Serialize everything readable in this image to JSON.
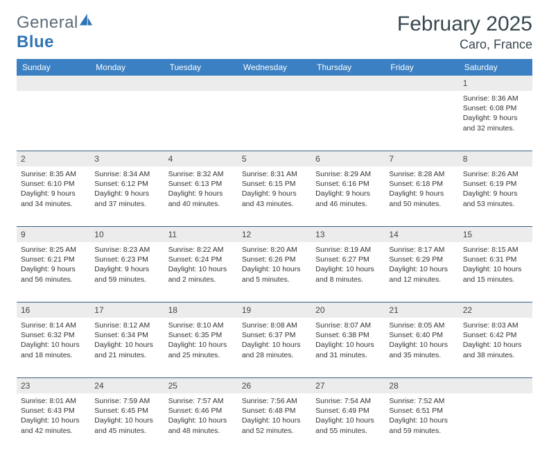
{
  "brand": {
    "name_a": "General",
    "name_b": "Blue"
  },
  "title": "February 2025",
  "location": "Caro, France",
  "colors": {
    "header_bg": "#3a80c3",
    "header_text": "#ffffff",
    "daynum_bg": "#ececec",
    "week_border": "#3a5e80",
    "text": "#333333",
    "title_color": "#37474f"
  },
  "day_names": [
    "Sunday",
    "Monday",
    "Tuesday",
    "Wednesday",
    "Thursday",
    "Friday",
    "Saturday"
  ],
  "weeks": [
    [
      {
        "n": "",
        "sr": "",
        "ss": "",
        "dl1": "",
        "dl2": ""
      },
      {
        "n": "",
        "sr": "",
        "ss": "",
        "dl1": "",
        "dl2": ""
      },
      {
        "n": "",
        "sr": "",
        "ss": "",
        "dl1": "",
        "dl2": ""
      },
      {
        "n": "",
        "sr": "",
        "ss": "",
        "dl1": "",
        "dl2": ""
      },
      {
        "n": "",
        "sr": "",
        "ss": "",
        "dl1": "",
        "dl2": ""
      },
      {
        "n": "",
        "sr": "",
        "ss": "",
        "dl1": "",
        "dl2": ""
      },
      {
        "n": "1",
        "sr": "Sunrise: 8:36 AM",
        "ss": "Sunset: 6:08 PM",
        "dl1": "Daylight: 9 hours",
        "dl2": "and 32 minutes."
      }
    ],
    [
      {
        "n": "2",
        "sr": "Sunrise: 8:35 AM",
        "ss": "Sunset: 6:10 PM",
        "dl1": "Daylight: 9 hours",
        "dl2": "and 34 minutes."
      },
      {
        "n": "3",
        "sr": "Sunrise: 8:34 AM",
        "ss": "Sunset: 6:12 PM",
        "dl1": "Daylight: 9 hours",
        "dl2": "and 37 minutes."
      },
      {
        "n": "4",
        "sr": "Sunrise: 8:32 AM",
        "ss": "Sunset: 6:13 PM",
        "dl1": "Daylight: 9 hours",
        "dl2": "and 40 minutes."
      },
      {
        "n": "5",
        "sr": "Sunrise: 8:31 AM",
        "ss": "Sunset: 6:15 PM",
        "dl1": "Daylight: 9 hours",
        "dl2": "and 43 minutes."
      },
      {
        "n": "6",
        "sr": "Sunrise: 8:29 AM",
        "ss": "Sunset: 6:16 PM",
        "dl1": "Daylight: 9 hours",
        "dl2": "and 46 minutes."
      },
      {
        "n": "7",
        "sr": "Sunrise: 8:28 AM",
        "ss": "Sunset: 6:18 PM",
        "dl1": "Daylight: 9 hours",
        "dl2": "and 50 minutes."
      },
      {
        "n": "8",
        "sr": "Sunrise: 8:26 AM",
        "ss": "Sunset: 6:19 PM",
        "dl1": "Daylight: 9 hours",
        "dl2": "and 53 minutes."
      }
    ],
    [
      {
        "n": "9",
        "sr": "Sunrise: 8:25 AM",
        "ss": "Sunset: 6:21 PM",
        "dl1": "Daylight: 9 hours",
        "dl2": "and 56 minutes."
      },
      {
        "n": "10",
        "sr": "Sunrise: 8:23 AM",
        "ss": "Sunset: 6:23 PM",
        "dl1": "Daylight: 9 hours",
        "dl2": "and 59 minutes."
      },
      {
        "n": "11",
        "sr": "Sunrise: 8:22 AM",
        "ss": "Sunset: 6:24 PM",
        "dl1": "Daylight: 10 hours",
        "dl2": "and 2 minutes."
      },
      {
        "n": "12",
        "sr": "Sunrise: 8:20 AM",
        "ss": "Sunset: 6:26 PM",
        "dl1": "Daylight: 10 hours",
        "dl2": "and 5 minutes."
      },
      {
        "n": "13",
        "sr": "Sunrise: 8:19 AM",
        "ss": "Sunset: 6:27 PM",
        "dl1": "Daylight: 10 hours",
        "dl2": "and 8 minutes."
      },
      {
        "n": "14",
        "sr": "Sunrise: 8:17 AM",
        "ss": "Sunset: 6:29 PM",
        "dl1": "Daylight: 10 hours",
        "dl2": "and 12 minutes."
      },
      {
        "n": "15",
        "sr": "Sunrise: 8:15 AM",
        "ss": "Sunset: 6:31 PM",
        "dl1": "Daylight: 10 hours",
        "dl2": "and 15 minutes."
      }
    ],
    [
      {
        "n": "16",
        "sr": "Sunrise: 8:14 AM",
        "ss": "Sunset: 6:32 PM",
        "dl1": "Daylight: 10 hours",
        "dl2": "and 18 minutes."
      },
      {
        "n": "17",
        "sr": "Sunrise: 8:12 AM",
        "ss": "Sunset: 6:34 PM",
        "dl1": "Daylight: 10 hours",
        "dl2": "and 21 minutes."
      },
      {
        "n": "18",
        "sr": "Sunrise: 8:10 AM",
        "ss": "Sunset: 6:35 PM",
        "dl1": "Daylight: 10 hours",
        "dl2": "and 25 minutes."
      },
      {
        "n": "19",
        "sr": "Sunrise: 8:08 AM",
        "ss": "Sunset: 6:37 PM",
        "dl1": "Daylight: 10 hours",
        "dl2": "and 28 minutes."
      },
      {
        "n": "20",
        "sr": "Sunrise: 8:07 AM",
        "ss": "Sunset: 6:38 PM",
        "dl1": "Daylight: 10 hours",
        "dl2": "and 31 minutes."
      },
      {
        "n": "21",
        "sr": "Sunrise: 8:05 AM",
        "ss": "Sunset: 6:40 PM",
        "dl1": "Daylight: 10 hours",
        "dl2": "and 35 minutes."
      },
      {
        "n": "22",
        "sr": "Sunrise: 8:03 AM",
        "ss": "Sunset: 6:42 PM",
        "dl1": "Daylight: 10 hours",
        "dl2": "and 38 minutes."
      }
    ],
    [
      {
        "n": "23",
        "sr": "Sunrise: 8:01 AM",
        "ss": "Sunset: 6:43 PM",
        "dl1": "Daylight: 10 hours",
        "dl2": "and 42 minutes."
      },
      {
        "n": "24",
        "sr": "Sunrise: 7:59 AM",
        "ss": "Sunset: 6:45 PM",
        "dl1": "Daylight: 10 hours",
        "dl2": "and 45 minutes."
      },
      {
        "n": "25",
        "sr": "Sunrise: 7:57 AM",
        "ss": "Sunset: 6:46 PM",
        "dl1": "Daylight: 10 hours",
        "dl2": "and 48 minutes."
      },
      {
        "n": "26",
        "sr": "Sunrise: 7:56 AM",
        "ss": "Sunset: 6:48 PM",
        "dl1": "Daylight: 10 hours",
        "dl2": "and 52 minutes."
      },
      {
        "n": "27",
        "sr": "Sunrise: 7:54 AM",
        "ss": "Sunset: 6:49 PM",
        "dl1": "Daylight: 10 hours",
        "dl2": "and 55 minutes."
      },
      {
        "n": "28",
        "sr": "Sunrise: 7:52 AM",
        "ss": "Sunset: 6:51 PM",
        "dl1": "Daylight: 10 hours",
        "dl2": "and 59 minutes."
      },
      {
        "n": "",
        "sr": "",
        "ss": "",
        "dl1": "",
        "dl2": ""
      }
    ]
  ]
}
